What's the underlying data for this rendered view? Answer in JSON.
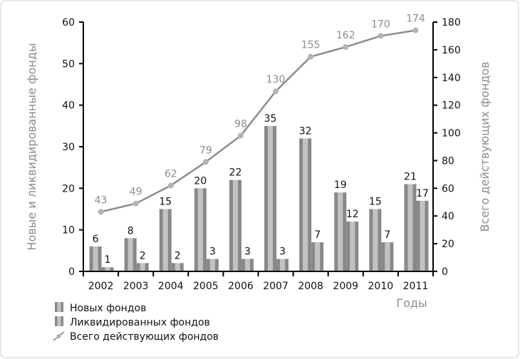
{
  "chart_data": {
    "type": "bar",
    "categories": [
      "2002",
      "2003",
      "2004",
      "2005",
      "2006",
      "2007",
      "2008",
      "2009",
      "2010",
      "2011"
    ],
    "series": [
      {
        "name": "Новых фондов",
        "axis": "left",
        "type": "bar",
        "values": [
          6,
          8,
          15,
          20,
          22,
          35,
          32,
          19,
          15,
          21
        ]
      },
      {
        "name": "Ликвидированных фондов",
        "axis": "left",
        "type": "bar",
        "values": [
          1,
          2,
          2,
          3,
          3,
          3,
          7,
          12,
          7,
          17
        ]
      },
      {
        "name": "Всего действующих фондов",
        "axis": "right",
        "type": "line",
        "values": [
          43,
          49,
          62,
          79,
          98,
          130,
          155,
          162,
          170,
          174
        ]
      }
    ],
    "xlabel": "Годы",
    "ylabel": "Новые и ликвидированные фонды",
    "y2label": "Всего действующих фондов",
    "ylim": [
      0,
      60
    ],
    "y2lim": [
      0,
      180
    ],
    "yticks": [
      0,
      10,
      20,
      30,
      40,
      50,
      60
    ],
    "y2ticks": [
      0,
      20,
      40,
      60,
      80,
      100,
      120,
      140,
      160,
      180
    ],
    "legend": "bottom-left",
    "grid": false
  },
  "colors": {
    "bar_dark": "#8a8a8a",
    "bar_light": "#c4c4c4",
    "line": "#8c8c8c",
    "marker": "#b4b4b4",
    "line_label": "#8c8c8c",
    "axis_label": "#8c8c8c"
  }
}
